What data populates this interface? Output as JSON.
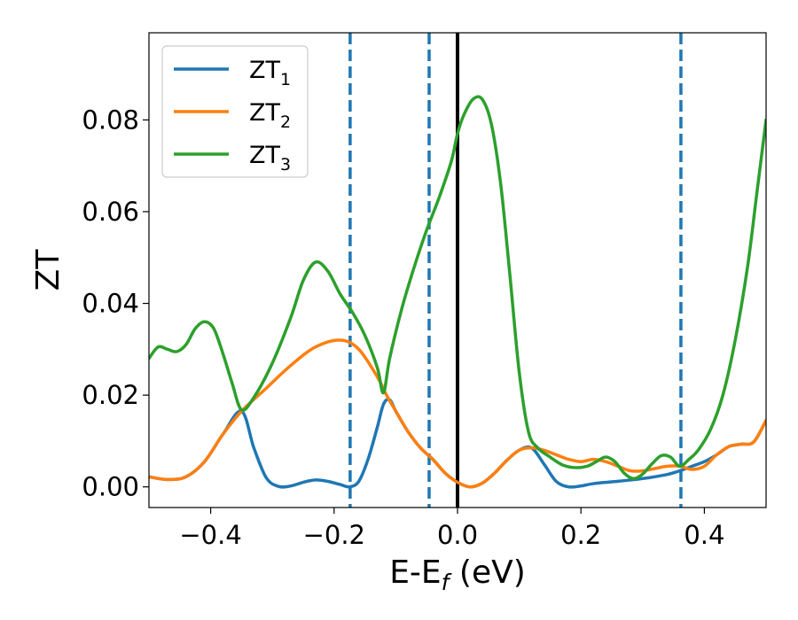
{
  "chart_data": {
    "type": "line",
    "xlabel_main": "E-E",
    "xlabel_sub": "f",
    "xlabel_unit": " (eV)",
    "ylabel": "ZT",
    "xlim": [
      -0.5,
      0.5
    ],
    "ylim": [
      -0.0045,
      0.099
    ],
    "x_ticks": [
      -0.4,
      -0.2,
      0.0,
      0.2,
      0.4
    ],
    "x_tick_labels": [
      "−0.4",
      "−0.2",
      "0.0",
      "0.2",
      "0.4"
    ],
    "y_ticks": [
      0.0,
      0.02,
      0.04,
      0.06,
      0.08
    ],
    "y_tick_labels": [
      "0.00",
      "0.02",
      "0.04",
      "0.06",
      "0.08"
    ],
    "legend_position": "top-left",
    "vlines": [
      {
        "x": -0.174,
        "style": "dashed",
        "color": "#1f77b4"
      },
      {
        "x": -0.046,
        "style": "dashed",
        "color": "#1f77b4"
      },
      {
        "x": 0.0,
        "style": "solid",
        "color": "#000000"
      },
      {
        "x": 0.362,
        "style": "dashed",
        "color": "#1f77b4"
      }
    ],
    "series": [
      {
        "name": "ZT",
        "sub": "1",
        "color": "#1f77b4",
        "points": [
          [
            -0.5,
            0.0022
          ],
          [
            -0.47,
            0.0016
          ],
          [
            -0.44,
            0.0022
          ],
          [
            -0.41,
            0.0055
          ],
          [
            -0.38,
            0.0115
          ],
          [
            -0.35,
            0.0165
          ],
          [
            -0.33,
            0.0085
          ],
          [
            -0.31,
            0.002
          ],
          [
            -0.29,
            0.0001
          ],
          [
            -0.27,
            0.0002
          ],
          [
            -0.25,
            0.001
          ],
          [
            -0.23,
            0.0015
          ],
          [
            -0.21,
            0.0012
          ],
          [
            -0.19,
            0.0005
          ],
          [
            -0.175,
            0.0
          ],
          [
            -0.16,
            0.0012
          ],
          [
            -0.145,
            0.006
          ],
          [
            -0.13,
            0.013
          ],
          [
            -0.12,
            0.018
          ],
          [
            -0.11,
            0.019
          ],
          [
            -0.1,
            0.0165
          ],
          [
            -0.08,
            0.012
          ],
          [
            -0.06,
            0.0085
          ],
          [
            -0.04,
            0.006
          ],
          [
            -0.02,
            0.003
          ],
          [
            0.0,
            0.001
          ],
          [
            0.02,
            0.0
          ],
          [
            0.04,
            0.0008
          ],
          [
            0.06,
            0.003
          ],
          [
            0.08,
            0.0058
          ],
          [
            0.1,
            0.008
          ],
          [
            0.12,
            0.0085
          ],
          [
            0.14,
            0.005
          ],
          [
            0.16,
            0.0012
          ],
          [
            0.18,
            0.0
          ],
          [
            0.2,
            0.0002
          ],
          [
            0.22,
            0.0007
          ],
          [
            0.25,
            0.0011
          ],
          [
            0.28,
            0.0015
          ],
          [
            0.31,
            0.002
          ],
          [
            0.34,
            0.0027
          ],
          [
            0.36,
            0.0035
          ],
          [
            0.38,
            0.0045
          ],
          [
            0.4,
            0.0055
          ],
          [
            0.42,
            0.007
          ],
          [
            0.44,
            0.0088
          ],
          [
            0.46,
            0.0093
          ],
          [
            0.48,
            0.0098
          ],
          [
            0.5,
            0.0145
          ]
        ]
      },
      {
        "name": "ZT",
        "sub": "2",
        "color": "#ff7f0e",
        "points": [
          [
            -0.5,
            0.0022
          ],
          [
            -0.47,
            0.0016
          ],
          [
            -0.44,
            0.0022
          ],
          [
            -0.41,
            0.0055
          ],
          [
            -0.38,
            0.0115
          ],
          [
            -0.35,
            0.0165
          ],
          [
            -0.31,
            0.0215
          ],
          [
            -0.27,
            0.0265
          ],
          [
            -0.23,
            0.0305
          ],
          [
            -0.19,
            0.032
          ],
          [
            -0.16,
            0.03
          ],
          [
            -0.13,
            0.024
          ],
          [
            -0.115,
            0.02
          ],
          [
            -0.1,
            0.0165
          ],
          [
            -0.08,
            0.012
          ],
          [
            -0.06,
            0.0085
          ],
          [
            -0.04,
            0.006
          ],
          [
            -0.02,
            0.003
          ],
          [
            0.0,
            0.001
          ],
          [
            0.02,
            0.0
          ],
          [
            0.04,
            0.0008
          ],
          [
            0.06,
            0.003
          ],
          [
            0.08,
            0.0058
          ],
          [
            0.1,
            0.008
          ],
          [
            0.12,
            0.0085
          ],
          [
            0.14,
            0.008
          ],
          [
            0.16,
            0.007
          ],
          [
            0.18,
            0.006
          ],
          [
            0.2,
            0.0055
          ],
          [
            0.22,
            0.006
          ],
          [
            0.24,
            0.0055
          ],
          [
            0.26,
            0.0045
          ],
          [
            0.28,
            0.0035
          ],
          [
            0.3,
            0.0035
          ],
          [
            0.32,
            0.004
          ],
          [
            0.34,
            0.0045
          ],
          [
            0.36,
            0.0045
          ],
          [
            0.38,
            0.0038
          ],
          [
            0.4,
            0.0045
          ],
          [
            0.42,
            0.007
          ],
          [
            0.44,
            0.0088
          ],
          [
            0.46,
            0.0093
          ],
          [
            0.48,
            0.0098
          ],
          [
            0.5,
            0.0145
          ]
        ]
      },
      {
        "name": "ZT",
        "sub": "3",
        "color": "#2ca02c",
        "points": [
          [
            -0.5,
            0.028
          ],
          [
            -0.485,
            0.0305
          ],
          [
            -0.47,
            0.03
          ],
          [
            -0.455,
            0.0295
          ],
          [
            -0.44,
            0.031
          ],
          [
            -0.425,
            0.0345
          ],
          [
            -0.41,
            0.036
          ],
          [
            -0.395,
            0.0345
          ],
          [
            -0.38,
            0.029
          ],
          [
            -0.365,
            0.0225
          ],
          [
            -0.35,
            0.0168
          ],
          [
            -0.33,
            0.0195
          ],
          [
            -0.3,
            0.027
          ],
          [
            -0.27,
            0.037
          ],
          [
            -0.25,
            0.045
          ],
          [
            -0.23,
            0.049
          ],
          [
            -0.21,
            0.047
          ],
          [
            -0.19,
            0.042
          ],
          [
            -0.17,
            0.038
          ],
          [
            -0.15,
            0.033
          ],
          [
            -0.13,
            0.026
          ],
          [
            -0.12,
            0.0205
          ],
          [
            -0.11,
            0.028
          ],
          [
            -0.09,
            0.039
          ],
          [
            -0.07,
            0.048
          ],
          [
            -0.05,
            0.056
          ],
          [
            -0.03,
            0.063
          ],
          [
            -0.01,
            0.071
          ],
          [
            0.0,
            0.077
          ],
          [
            0.01,
            0.081
          ],
          [
            0.025,
            0.0845
          ],
          [
            0.04,
            0.0845
          ],
          [
            0.055,
            0.079
          ],
          [
            0.07,
            0.066
          ],
          [
            0.085,
            0.046
          ],
          [
            0.1,
            0.025
          ],
          [
            0.115,
            0.012
          ],
          [
            0.13,
            0.0085
          ],
          [
            0.15,
            0.0065
          ],
          [
            0.17,
            0.0048
          ],
          [
            0.19,
            0.0042
          ],
          [
            0.21,
            0.0045
          ],
          [
            0.225,
            0.0055
          ],
          [
            0.24,
            0.0065
          ],
          [
            0.255,
            0.0055
          ],
          [
            0.27,
            0.003
          ],
          [
            0.285,
            0.0018
          ],
          [
            0.3,
            0.0028
          ],
          [
            0.315,
            0.005
          ],
          [
            0.33,
            0.0068
          ],
          [
            0.345,
            0.0065
          ],
          [
            0.36,
            0.0045
          ],
          [
            0.375,
            0.006
          ],
          [
            0.39,
            0.008
          ],
          [
            0.41,
            0.0125
          ],
          [
            0.43,
            0.02
          ],
          [
            0.45,
            0.032
          ],
          [
            0.47,
            0.048
          ],
          [
            0.485,
            0.064
          ],
          [
            0.5,
            0.08
          ]
        ]
      }
    ]
  }
}
